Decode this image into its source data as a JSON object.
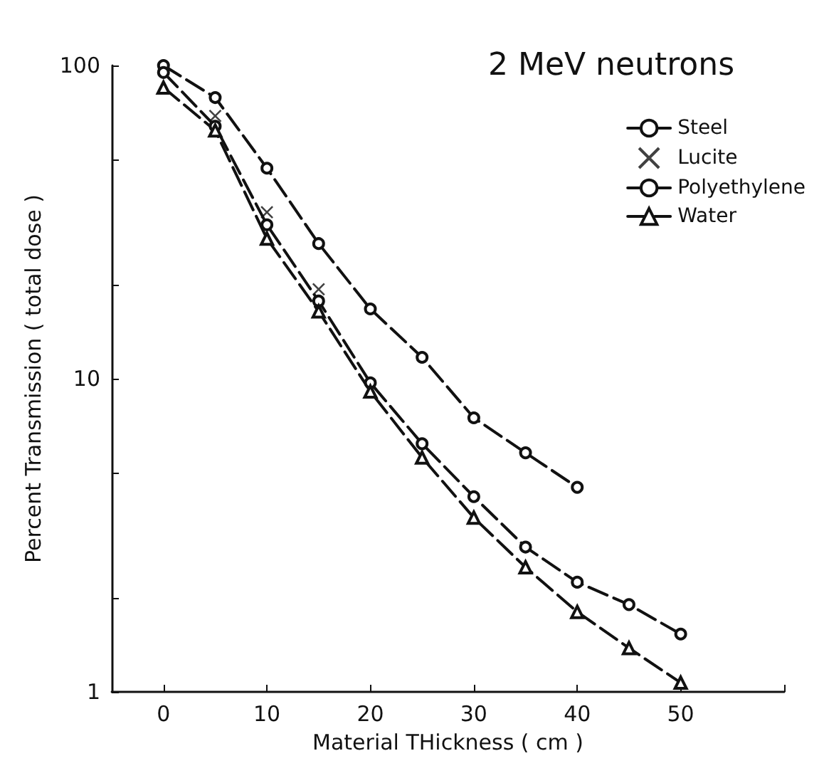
{
  "chart_data": {
    "type": "line",
    "title": "2 MeV neutrons",
    "xlabel": "Material THickness ( cm )",
    "ylabel": "Percent Transmission ( total dose )",
    "x": [
      0,
      5,
      10,
      15,
      20,
      25,
      30,
      35,
      40,
      45,
      50
    ],
    "series": [
      {
        "name": "Steel",
        "color": "#111111",
        "marker": "circle",
        "line_style": "dashed",
        "x": [
          0,
          5,
          10,
          15,
          20,
          25,
          30,
          35,
          40
        ],
        "values": [
          100,
          79,
          47,
          27,
          16.7,
          11.7,
          7.5,
          5.8,
          4.5
        ]
      },
      {
        "name": "Lucite",
        "type": "scatter",
        "color": "#111111",
        "marker": "cross",
        "x": [
          5,
          10,
          15
        ],
        "values": [
          69,
          34,
          19.3
        ]
      },
      {
        "name": "Polyethylene",
        "color": "#111111",
        "marker": "circle",
        "line_style": "dashed",
        "values": [
          95,
          64,
          31,
          17.7,
          9.7,
          6.2,
          4.2,
          2.9,
          2.24,
          1.9,
          1.53
        ]
      },
      {
        "name": "Water",
        "color": "#111111",
        "marker": "triangle",
        "line_style": "dashed",
        "values": [
          85,
          62,
          28,
          16.4,
          9.1,
          5.6,
          3.6,
          2.5,
          1.8,
          1.38,
          1.07
        ]
      }
    ],
    "xlim": [
      -5,
      60
    ],
    "xticks": [
      0,
      10,
      20,
      30,
      40,
      50,
      {
        "value": 60,
        "label": null
      }
    ],
    "ylim": [
      1,
      100
    ],
    "yticks": [
      1,
      {
        "value": 2,
        "label": null
      },
      {
        "value": 5,
        "label": null
      },
      10,
      {
        "value": 20,
        "label": null
      },
      {
        "value": 50,
        "label": null
      },
      100
    ],
    "log": true,
    "grid": false,
    "legend": "top right"
  }
}
